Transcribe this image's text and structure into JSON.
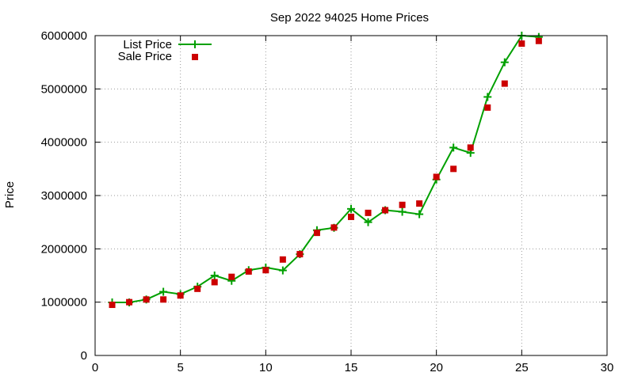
{
  "chart_data": {
    "type": "line",
    "title": "Sep 2022 94025 Home Prices",
    "xlabel": "",
    "ylabel": "Price",
    "xlim": [
      0,
      30
    ],
    "ylim": [
      0,
      6000000
    ],
    "xticks": [
      0,
      5,
      10,
      15,
      20,
      25,
      30
    ],
    "yticks": [
      0,
      1000000,
      2000000,
      3000000,
      4000000,
      5000000,
      6000000
    ],
    "xtick_labels": [
      "0",
      "5",
      "10",
      "15",
      "20",
      "25",
      "30"
    ],
    "ytick_labels": [
      "0",
      "1000000",
      "2000000",
      "3000000",
      "4000000",
      "5000000",
      "6000000"
    ],
    "grid": true,
    "legend_position": "top-left",
    "series": [
      {
        "name": "List Price",
        "style": "line-with-plus-markers",
        "color": "#00a000",
        "x": [
          1,
          2,
          3,
          4,
          5,
          6,
          7,
          8,
          9,
          10,
          11,
          12,
          13,
          14,
          15,
          16,
          17,
          18,
          19,
          20,
          21,
          22,
          23,
          24,
          25,
          26
        ],
        "y": [
          995000,
          995000,
          1050000,
          1195000,
          1150000,
          1290000,
          1500000,
          1400000,
          1600000,
          1650000,
          1595000,
          1900000,
          2350000,
          2395000,
          2750000,
          2500000,
          2725000,
          2695000,
          2650000,
          3300000,
          3900000,
          3800000,
          4850000,
          5500000,
          6000000,
          5975000
        ]
      },
      {
        "name": "Sale Price",
        "style": "square-markers",
        "color": "#cc0000",
        "x": [
          1,
          2,
          3,
          4,
          5,
          6,
          7,
          8,
          9,
          10,
          11,
          12,
          13,
          14,
          15,
          16,
          17,
          18,
          19,
          20,
          21,
          22,
          23,
          24,
          25,
          26
        ],
        "y": [
          950000,
          1000000,
          1050000,
          1050000,
          1125000,
          1250000,
          1375000,
          1475000,
          1575000,
          1600000,
          1800000,
          1900000,
          2300000,
          2400000,
          2600000,
          2675000,
          2725000,
          2825000,
          2850000,
          3350000,
          3500000,
          3900000,
          4650000,
          5100000,
          5850000,
          5900000
        ]
      }
    ]
  }
}
